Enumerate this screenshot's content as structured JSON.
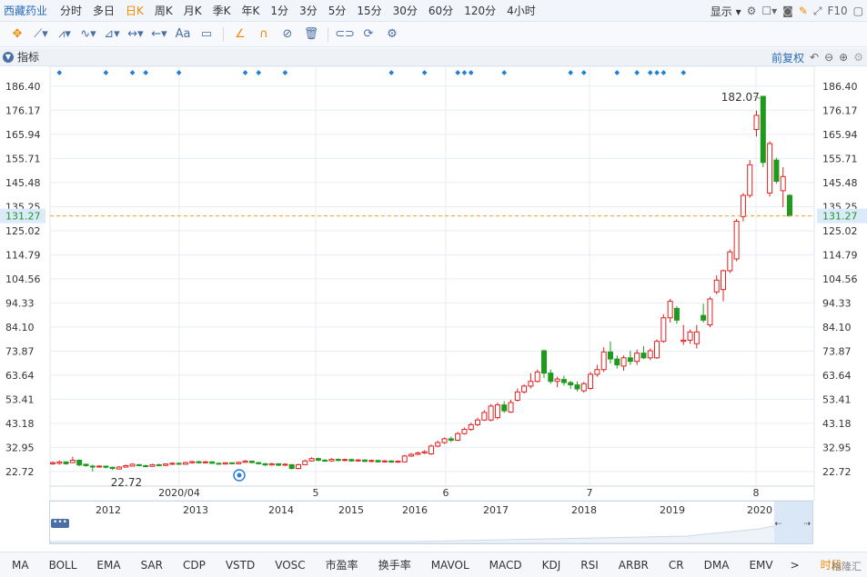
{
  "toolbar": {
    "stock_name": "西藏药业",
    "periods": [
      "分时",
      "多日",
      "日K",
      "周K",
      "月K",
      "季K",
      "年K",
      "1分",
      "3分",
      "5分",
      "15分",
      "30分",
      "60分",
      "120分",
      "4小时"
    ],
    "active_period": "日K",
    "display_label": "显示",
    "f10_label": "F10"
  },
  "indicator_bar": {
    "label": "指标",
    "adjust_label": "前复权"
  },
  "chart_data": {
    "type": "candlestick",
    "title": "",
    "xlabel": "",
    "ylabel": "",
    "y_ticks": [
      186.4,
      176.17,
      165.94,
      155.71,
      145.48,
      135.25,
      125.02,
      114.79,
      104.56,
      94.33,
      84.1,
      73.87,
      63.64,
      53.41,
      43.18,
      32.95,
      22.72
    ],
    "y_tick_labels": [
      "186.40",
      "176.17",
      "165.94",
      "155.71",
      "145.48",
      "135.25",
      "125.02",
      "114.79",
      "104.56",
      "94.33",
      "84.10",
      "73.87",
      "63.64",
      "53.41",
      "43.18",
      "32.95",
      "22.72"
    ],
    "ylim": [
      16.5,
      192.5
    ],
    "current_price": 131.27,
    "current_price_label": "131.27",
    "max_label": "182.07",
    "min_label": "22.72",
    "x_labels": [
      "2020/04",
      "5",
      "6",
      "7",
      "8"
    ],
    "candles": [
      {
        "o": 26.0,
        "c": 26.5,
        "h": 27.0,
        "l": 25.5
      },
      {
        "o": 26.2,
        "c": 26.8,
        "h": 27.4,
        "l": 25.6
      },
      {
        "o": 26.8,
        "c": 26.0,
        "h": 27.0,
        "l": 25.6
      },
      {
        "o": 26.5,
        "c": 27.5,
        "h": 29.0,
        "l": 26.2
      },
      {
        "o": 27.5,
        "c": 25.5,
        "h": 27.8,
        "l": 25.0
      },
      {
        "o": 25.8,
        "c": 25.2,
        "h": 26.0,
        "l": 24.8
      },
      {
        "o": 25.0,
        "c": 24.6,
        "h": 25.6,
        "l": 22.72
      },
      {
        "o": 24.8,
        "c": 25.0,
        "h": 25.4,
        "l": 24.4
      },
      {
        "o": 25.0,
        "c": 24.5,
        "h": 25.2,
        "l": 24.0
      },
      {
        "o": 24.5,
        "c": 24.0,
        "h": 24.8,
        "l": 23.4
      },
      {
        "o": 23.8,
        "c": 24.6,
        "h": 25.0,
        "l": 23.5
      },
      {
        "o": 24.6,
        "c": 25.2,
        "h": 25.6,
        "l": 24.3
      },
      {
        "o": 25.0,
        "c": 25.8,
        "h": 26.2,
        "l": 24.8
      },
      {
        "o": 25.6,
        "c": 25.2,
        "h": 26.0,
        "l": 25.0
      },
      {
        "o": 25.2,
        "c": 24.8,
        "h": 25.6,
        "l": 24.5
      },
      {
        "o": 24.9,
        "c": 25.6,
        "h": 26.0,
        "l": 24.7
      },
      {
        "o": 25.6,
        "c": 25.2,
        "h": 26.0,
        "l": 24.9
      },
      {
        "o": 25.3,
        "c": 25.9,
        "h": 26.2,
        "l": 25.0
      },
      {
        "o": 25.8,
        "c": 26.2,
        "h": 26.6,
        "l": 25.5
      },
      {
        "o": 26.2,
        "c": 25.8,
        "h": 26.6,
        "l": 25.5
      },
      {
        "o": 25.8,
        "c": 26.5,
        "h": 26.9,
        "l": 25.6
      },
      {
        "o": 26.4,
        "c": 26.9,
        "h": 27.3,
        "l": 26.1
      },
      {
        "o": 26.9,
        "c": 26.4,
        "h": 27.2,
        "l": 26.1
      },
      {
        "o": 26.4,
        "c": 26.8,
        "h": 27.2,
        "l": 26.2
      },
      {
        "o": 26.8,
        "c": 26.2,
        "h": 27.1,
        "l": 26.0
      },
      {
        "o": 26.2,
        "c": 25.9,
        "h": 26.5,
        "l": 25.6
      },
      {
        "o": 25.9,
        "c": 26.4,
        "h": 26.7,
        "l": 25.6
      },
      {
        "o": 26.4,
        "c": 26.0,
        "h": 26.7,
        "l": 25.7
      },
      {
        "o": 26.0,
        "c": 26.6,
        "h": 26.9,
        "l": 25.8
      },
      {
        "o": 26.6,
        "c": 27.1,
        "h": 27.6,
        "l": 26.4
      },
      {
        "o": 27.1,
        "c": 26.5,
        "h": 27.4,
        "l": 26.2
      },
      {
        "o": 26.5,
        "c": 26.0,
        "h": 26.8,
        "l": 25.7
      },
      {
        "o": 26.0,
        "c": 25.5,
        "h": 26.3,
        "l": 25.1
      },
      {
        "o": 25.5,
        "c": 26.0,
        "h": 26.4,
        "l": 25.2
      },
      {
        "o": 26.0,
        "c": 25.4,
        "h": 26.2,
        "l": 25.0
      },
      {
        "o": 25.4,
        "c": 25.8,
        "h": 26.2,
        "l": 25.1
      },
      {
        "o": 25.6,
        "c": 24.0,
        "h": 25.9,
        "l": 23.6
      },
      {
        "o": 24.0,
        "c": 25.6,
        "h": 26.0,
        "l": 23.6
      },
      {
        "o": 25.6,
        "c": 27.2,
        "h": 27.8,
        "l": 25.4
      },
      {
        "o": 27.2,
        "c": 28.2,
        "h": 28.8,
        "l": 26.9
      },
      {
        "o": 28.2,
        "c": 27.5,
        "h": 28.6,
        "l": 27.0
      },
      {
        "o": 27.5,
        "c": 27.2,
        "h": 28.0,
        "l": 26.8
      },
      {
        "o": 27.2,
        "c": 27.9,
        "h": 28.4,
        "l": 26.9
      },
      {
        "o": 27.9,
        "c": 27.4,
        "h": 28.2,
        "l": 27.0
      },
      {
        "o": 27.4,
        "c": 27.8,
        "h": 28.2,
        "l": 27.0
      },
      {
        "o": 27.8,
        "c": 27.2,
        "h": 28.1,
        "l": 26.9
      },
      {
        "o": 27.2,
        "c": 27.6,
        "h": 28.0,
        "l": 26.9
      },
      {
        "o": 27.6,
        "c": 27.0,
        "h": 27.9,
        "l": 26.7
      },
      {
        "o": 27.0,
        "c": 27.4,
        "h": 27.8,
        "l": 26.6
      },
      {
        "o": 27.4,
        "c": 26.8,
        "h": 27.6,
        "l": 26.5
      },
      {
        "o": 26.8,
        "c": 27.2,
        "h": 27.6,
        "l": 26.5
      },
      {
        "o": 27.2,
        "c": 26.7,
        "h": 27.5,
        "l": 26.4
      },
      {
        "o": 26.7,
        "c": 27.1,
        "h": 27.4,
        "l": 26.4
      },
      {
        "o": 26.8,
        "c": 29.3,
        "h": 29.8,
        "l": 26.5
      },
      {
        "o": 29.3,
        "c": 30.0,
        "h": 30.6,
        "l": 28.9
      },
      {
        "o": 30.0,
        "c": 30.6,
        "h": 31.2,
        "l": 29.6
      },
      {
        "o": 30.6,
        "c": 31.1,
        "h": 31.8,
        "l": 30.2
      },
      {
        "o": 30.2,
        "c": 33.5,
        "h": 34.2,
        "l": 29.8
      },
      {
        "o": 33.5,
        "c": 35.0,
        "h": 35.8,
        "l": 33.0
      },
      {
        "o": 35.0,
        "c": 36.6,
        "h": 37.2,
        "l": 34.4
      },
      {
        "o": 36.6,
        "c": 36.0,
        "h": 37.6,
        "l": 35.2
      },
      {
        "o": 36.0,
        "c": 38.8,
        "h": 39.5,
        "l": 35.6
      },
      {
        "o": 38.8,
        "c": 40.6,
        "h": 41.4,
        "l": 38.4
      },
      {
        "o": 40.6,
        "c": 42.6,
        "h": 43.4,
        "l": 40.0
      },
      {
        "o": 42.6,
        "c": 44.6,
        "h": 45.6,
        "l": 42.0
      },
      {
        "o": 44.6,
        "c": 47.8,
        "h": 48.8,
        "l": 44.2
      },
      {
        "o": 44.6,
        "c": 50.5,
        "h": 51.3,
        "l": 44.0
      },
      {
        "o": 45.6,
        "c": 51.0,
        "h": 52.0,
        "l": 44.8
      },
      {
        "o": 51.0,
        "c": 48.5,
        "h": 52.6,
        "l": 47.6
      },
      {
        "o": 48.0,
        "c": 52.0,
        "h": 53.2,
        "l": 47.6
      },
      {
        "o": 53.0,
        "c": 56.5,
        "h": 58.0,
        "l": 52.4
      },
      {
        "o": 56.5,
        "c": 59.0,
        "h": 59.8,
        "l": 55.8
      },
      {
        "o": 59.0,
        "c": 61.0,
        "h": 64.5,
        "l": 58.0
      },
      {
        "o": 61.0,
        "c": 65.0,
        "h": 66.0,
        "l": 60.5
      },
      {
        "o": 74.0,
        "c": 64.5,
        "h": 74.5,
        "l": 62.5
      },
      {
        "o": 64.5,
        "c": 61.0,
        "h": 66.0,
        "l": 60.0
      },
      {
        "o": 61.0,
        "c": 62.0,
        "h": 63.0,
        "l": 58.5
      },
      {
        "o": 61.8,
        "c": 60.5,
        "h": 63.4,
        "l": 59.2
      },
      {
        "o": 60.5,
        "c": 59.5,
        "h": 61.2,
        "l": 57.8
      },
      {
        "o": 59.5,
        "c": 57.8,
        "h": 61.0,
        "l": 56.8
      },
      {
        "o": 57.0,
        "c": 60.0,
        "h": 60.8,
        "l": 56.2
      },
      {
        "o": 58.0,
        "c": 64.0,
        "h": 65.0,
        "l": 57.5
      },
      {
        "o": 64.0,
        "c": 66.0,
        "h": 68.0,
        "l": 63.0
      },
      {
        "o": 66.0,
        "c": 73.5,
        "h": 75.5,
        "l": 65.0
      },
      {
        "o": 73.5,
        "c": 70.5,
        "h": 78.0,
        "l": 68.5
      },
      {
        "o": 70.5,
        "c": 68.0,
        "h": 72.0,
        "l": 66.5
      },
      {
        "o": 67.5,
        "c": 71.0,
        "h": 72.0,
        "l": 65.5
      },
      {
        "o": 71.0,
        "c": 69.5,
        "h": 74.0,
        "l": 68.0
      },
      {
        "o": 69.5,
        "c": 73.0,
        "h": 74.5,
        "l": 68.0
      },
      {
        "o": 73.0,
        "c": 71.0,
        "h": 76.0,
        "l": 70.5
      },
      {
        "o": 71.0,
        "c": 74.0,
        "h": 75.0,
        "l": 70.0
      },
      {
        "o": 71.0,
        "c": 78.0,
        "h": 78.8,
        "l": 70.5
      },
      {
        "o": 78.0,
        "c": 88.0,
        "h": 89.5,
        "l": 77.5
      },
      {
        "o": 88.0,
        "c": 95.0,
        "h": 96.0,
        "l": 86.0
      },
      {
        "o": 92.0,
        "c": 87.0,
        "h": 93.0,
        "l": 85.5
      },
      {
        "o": 78.0,
        "c": 78.5,
        "h": 85.0,
        "l": 76.5
      },
      {
        "o": 78.5,
        "c": 82.0,
        "h": 83.0,
        "l": 77.0
      },
      {
        "o": 77.0,
        "c": 82.0,
        "h": 85.0,
        "l": 75.0
      },
      {
        "o": 89.0,
        "c": 87.0,
        "h": 94.0,
        "l": 86.0
      },
      {
        "o": 85.0,
        "c": 96.0,
        "h": 97.0,
        "l": 84.0
      },
      {
        "o": 99.0,
        "c": 104.0,
        "h": 106.0,
        "l": 98.0
      },
      {
        "o": 100.0,
        "c": 108.0,
        "h": 108.5,
        "l": 95.0
      },
      {
        "o": 108.0,
        "c": 116.0,
        "h": 117.0,
        "l": 107.0
      },
      {
        "o": 113.0,
        "c": 129.0,
        "h": 130.0,
        "l": 112.0
      },
      {
        "o": 131.0,
        "c": 140.0,
        "h": 141.0,
        "l": 129.0
      },
      {
        "o": 140.0,
        "c": 153.0,
        "h": 155.0,
        "l": 139.0
      },
      {
        "o": 168.0,
        "c": 174.0,
        "h": 176.0,
        "l": 165.0
      },
      {
        "o": 182.07,
        "c": 154.0,
        "h": 182.07,
        "l": 152.0
      },
      {
        "o": 141.0,
        "c": 162.0,
        "h": 163.0,
        "l": 139.5
      },
      {
        "o": 155.0,
        "c": 146.0,
        "h": 156.0,
        "l": 145.0
      },
      {
        "o": 142.0,
        "c": 148.0,
        "h": 152.0,
        "l": 135.0
      },
      {
        "o": 140.0,
        "c": 131.27,
        "h": 140.5,
        "l": 131.0
      }
    ],
    "marker_slots": [
      1,
      8,
      12,
      14,
      19,
      29,
      31,
      35,
      51,
      56,
      61,
      62,
      63,
      68,
      78,
      80,
      85,
      88,
      90,
      91,
      92,
      95
    ],
    "colors": {
      "up": "#e02020",
      "down": "#1f9a1f",
      "grid": "#e6edf5",
      "price_line": "#f0a030",
      "marker": "#1e7fd8",
      "axis_text": "#333333"
    }
  },
  "navigator": {
    "years": [
      "2012",
      "2013",
      "2014",
      "2015",
      "2016",
      "2017",
      "2018",
      "2019",
      "2020"
    ],
    "dots_label": "•••",
    "left_arrow": "⇠",
    "right_arrow": "⇢"
  },
  "indicators": {
    "items": [
      "MA",
      "BOLL",
      "EMA",
      "SAR",
      "CDP",
      "VSTD",
      "VOSC",
      "市盈率",
      "换手率",
      "MAVOL",
      "MACD",
      "KDJ",
      "RSI",
      "ARBR",
      "CR",
      "DMA",
      "EMV"
    ],
    "more_arrow": ">",
    "period_tab": "时段",
    "watermark": "格隆汇"
  }
}
